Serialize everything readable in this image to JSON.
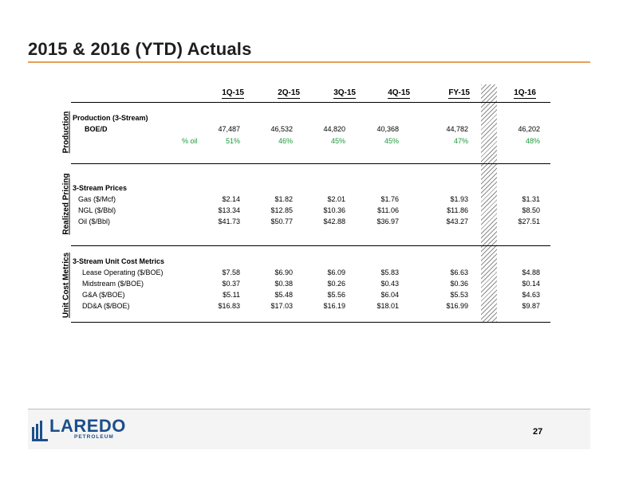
{
  "title": "2015 & 2016 (YTD) Actuals",
  "columns": [
    "1Q-15",
    "2Q-15",
    "3Q-15",
    "4Q-15",
    "FY-15",
    "1Q-16"
  ],
  "sections": [
    {
      "label": "Production",
      "heading": "Production (3-Stream)",
      "rows": [
        {
          "label": "BOE/D",
          "values": [
            "47,487",
            "46,532",
            "44,820",
            "40,368",
            "44,782",
            "46,202"
          ]
        },
        {
          "label": "% oil",
          "values": [
            "51%",
            "46%",
            "45%",
            "45%",
            "47%",
            "48%"
          ]
        }
      ]
    },
    {
      "label": "Realized Pricing",
      "heading": "3-Stream Prices",
      "rows": [
        {
          "label": "Gas ($/Mcf)",
          "values": [
            "$2.14",
            "$1.82",
            "$2.01",
            "$1.76",
            "$1.93",
            "$1.31"
          ]
        },
        {
          "label": "NGL ($/Bbl)",
          "values": [
            "$13.34",
            "$12.85",
            "$10.36",
            "$11.06",
            "$11.86",
            "$8.50"
          ]
        },
        {
          "label": "Oil ($/Bbl)",
          "values": [
            "$41.73",
            "$50.77",
            "$42.88",
            "$36.97",
            "$43.27",
            "$27.51"
          ]
        }
      ]
    },
    {
      "label": "Unit Cost Metrics",
      "heading": "3-Stream Unit Cost Metrics",
      "rows": [
        {
          "label": "Lease Operating ($/BOE)",
          "values": [
            "$7.58",
            "$6.90",
            "$6.09",
            "$5.83",
            "$6.63",
            "$4.88"
          ]
        },
        {
          "label": "Midstream ($/BOE)",
          "values": [
            "$0.37",
            "$0.38",
            "$0.26",
            "$0.43",
            "$0.36",
            "$0.14"
          ]
        },
        {
          "label": "G&A ($/BOE)",
          "values": [
            "$5.11",
            "$5.48",
            "$5.56",
            "$6.04",
            "$5.53",
            "$4.63"
          ]
        },
        {
          "label": "DD&A ($/BOE)",
          "values": [
            "$16.83",
            "$17.03",
            "$16.19",
            "$18.01",
            "$16.99",
            "$9.87"
          ]
        }
      ]
    }
  ],
  "logo": {
    "name": "LAREDO",
    "sub": "PETROLEUM"
  },
  "page_number": "27",
  "colors": {
    "accent_rule": "#e8a05a",
    "oil_pct": "#1a9a3a",
    "logo_blue": "#1b4f8a"
  }
}
